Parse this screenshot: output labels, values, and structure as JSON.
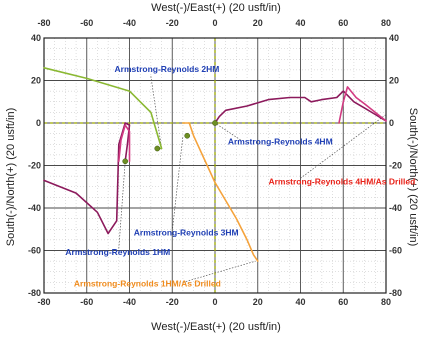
{
  "chart_data": {
    "type": "line",
    "title": "",
    "xlabel": "West(-)/East(+) (20 usft/in)",
    "ylabel": "South(-)/North(+) (20 usft/in)",
    "xlim": [
      -80,
      80
    ],
    "ylim": [
      -80,
      40
    ],
    "x_ticks": [
      -80,
      -60,
      -40,
      -20,
      0,
      20,
      40,
      60,
      80
    ],
    "y_ticks": [
      -80,
      -60,
      -40,
      -20,
      0,
      20,
      40
    ],
    "grid": true,
    "minor_grid": true,
    "axes_mirrored": true,
    "reference_lines": {
      "x": 0,
      "y": 0,
      "style": "dashed",
      "color": "#9aa800"
    },
    "colors": {
      "background": "#ffffff",
      "grid": "#4a4a4a",
      "minor_grid": "#bfbfbf",
      "label_blue": "#1f3fb4",
      "label_red": "#e8231a",
      "label_orange": "#f08c1e"
    },
    "series": [
      {
        "name": "Armstrong-Reynolds 2HM",
        "color": "#8ab832",
        "x": [
          -80,
          -60,
          -40,
          -30,
          -25,
          -27
        ],
        "y": [
          26,
          21,
          15,
          5,
          -12,
          -12
        ],
        "marker_end": true,
        "label_color": "#1f3fb4"
      },
      {
        "name": "Armstrong-Reynolds 4HM",
        "color": "#8c1a5c",
        "x": [
          0,
          2,
          5,
          15,
          25,
          35,
          42,
          45,
          50,
          57,
          60,
          65,
          70,
          75,
          80
        ],
        "y": [
          0,
          3,
          6,
          8,
          11,
          12,
          12,
          10,
          11,
          12,
          15,
          10,
          7,
          4,
          1
        ],
        "marker_start": true,
        "label_color": "#1f3fb4"
      },
      {
        "name": "Armstrong-Reynolds 4HM/As Drilled",
        "color": "#d23a82",
        "x": [
          58,
          60,
          62,
          66,
          70,
          75,
          80
        ],
        "y": [
          0,
          10,
          17,
          12,
          9,
          5,
          1
        ],
        "label_color": "#e8231a"
      },
      {
        "name": "Armstrong-Reynolds 3HM",
        "color": "#8c1a5c",
        "x": [
          -80,
          -65,
          -55,
          -50,
          -46,
          -45,
          -42,
          -40,
          -41,
          -42
        ],
        "y": [
          -27,
          -33,
          -42,
          -52,
          -46,
          -10,
          0,
          -1,
          -10,
          -18
        ],
        "marker_end": true,
        "label_color": "#1f3fb4"
      },
      {
        "name": "Armstrong-Reynolds 1HM",
        "color": "#d23a82",
        "x": [
          -45,
          -44,
          -42,
          -40,
          -40
        ],
        "y": [
          -18,
          -8,
          -1,
          -4,
          -18
        ],
        "label_color": "#1f3fb4"
      },
      {
        "name": "Armstrong-Reynolds 1HM/As Drilled",
        "color": "#f5a33c",
        "x": [
          -15,
          -12,
          -10,
          0,
          10,
          15,
          18,
          20
        ],
        "y": [
          0,
          0,
          -6,
          -28,
          -45,
          -55,
          -62,
          -65
        ],
        "label_color": "#f08c1e"
      }
    ],
    "markers": [
      {
        "x": -27,
        "y": -12,
        "color": "#6d8f23"
      },
      {
        "x": -42,
        "y": -18,
        "color": "#6d8f23"
      },
      {
        "x": -13,
        "y": -6,
        "color": "#6d8f23"
      },
      {
        "x": 0,
        "y": 0,
        "color": "#6d8f23"
      }
    ],
    "annotations": [
      {
        "text": "Armstrong-Reynolds 2HM",
        "x": -47,
        "y": 24,
        "color": "#1f3fb4"
      },
      {
        "text": "Armstrong-Reynolds 4HM",
        "x": 6,
        "y": -10,
        "color": "#1f3fb4"
      },
      {
        "text": "Armstrong-Reynolds 4HM/As Drilled",
        "x": 25,
        "y": -29,
        "color": "#e8231a"
      },
      {
        "text": "Armstrong-Reynolds 3HM",
        "x": -38,
        "y": -53,
        "color": "#1f3fb4"
      },
      {
        "text": "Armstrong-Reynolds 1HM",
        "x": -70,
        "y": -62,
        "color": "#1f3fb4"
      },
      {
        "text": "Armstrong-Reynolds 1HM/As Drilled",
        "x": -66,
        "y": -77,
        "color": "#f08c1e"
      }
    ],
    "leader_lines": [
      {
        "from": [
          -30,
          22
        ],
        "to": [
          -25,
          -12
        ]
      },
      {
        "from": [
          12,
          -8
        ],
        "to": [
          0,
          0
        ]
      },
      {
        "from": [
          40,
          -26
        ],
        "to": [
          80,
          4
        ]
      },
      {
        "from": [
          -20,
          -51
        ],
        "to": [
          -15,
          -6
        ]
      },
      {
        "from": [
          -45,
          -59
        ],
        "to": [
          -42,
          -18
        ]
      },
      {
        "from": [
          -15,
          -75
        ],
        "to": [
          19,
          -65
        ]
      }
    ]
  }
}
